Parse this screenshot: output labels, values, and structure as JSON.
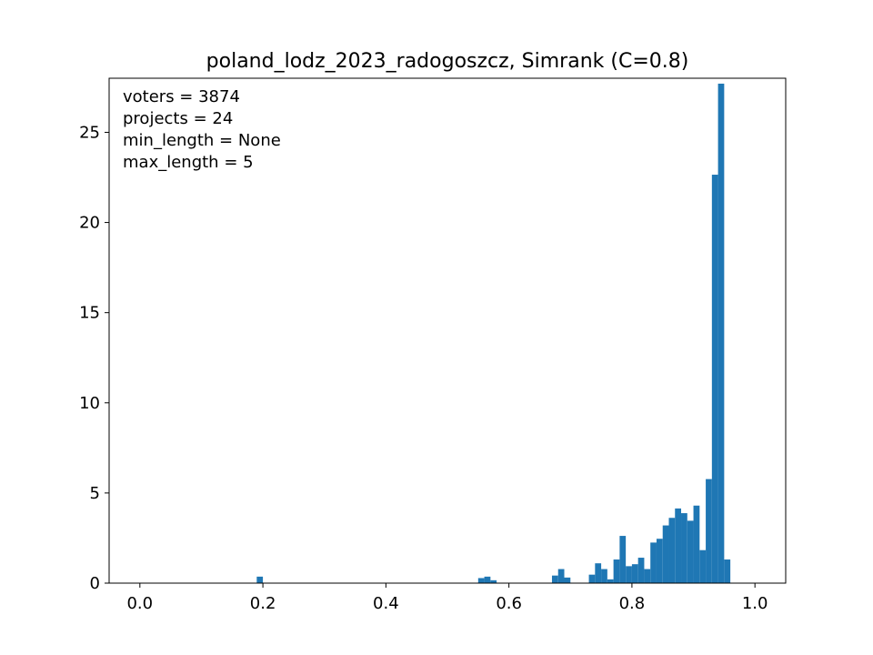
{
  "chart_data": {
    "type": "bar",
    "title": "poland_lodz_2023_radogoszcz, Simrank (C=0.8)",
    "xlabel": "",
    "ylabel": "",
    "xlim": [
      -0.05,
      1.05
    ],
    "ylim": [
      0,
      28
    ],
    "xticks": [
      0.0,
      0.2,
      0.4,
      0.6,
      0.8,
      1.0
    ],
    "xtick_labels": [
      "0.0",
      "0.2",
      "0.4",
      "0.6",
      "0.8",
      "1.0"
    ],
    "yticks": [
      0,
      5,
      10,
      15,
      20,
      25
    ],
    "ytick_labels": [
      "0",
      "5",
      "10",
      "15",
      "20",
      "25"
    ],
    "grid": false,
    "legend": false,
    "bar_color": "#1f77b4",
    "info_lines": [
      "voters = 3874",
      "projects = 24",
      "min_length = None",
      "max_length = 5"
    ],
    "bin_width": 0.01,
    "bins": [
      {
        "x0": 0.19,
        "value": 0.36
      },
      {
        "x0": 0.55,
        "value": 0.28
      },
      {
        "x0": 0.56,
        "value": 0.36
      },
      {
        "x0": 0.57,
        "value": 0.16
      },
      {
        "x0": 0.67,
        "value": 0.42
      },
      {
        "x0": 0.68,
        "value": 0.78
      },
      {
        "x0": 0.69,
        "value": 0.31
      },
      {
        "x0": 0.73,
        "value": 0.47
      },
      {
        "x0": 0.74,
        "value": 1.1
      },
      {
        "x0": 0.75,
        "value": 0.78
      },
      {
        "x0": 0.76,
        "value": 0.21
      },
      {
        "x0": 0.77,
        "value": 1.31
      },
      {
        "x0": 0.78,
        "value": 2.62
      },
      {
        "x0": 0.79,
        "value": 0.94
      },
      {
        "x0": 0.8,
        "value": 1.05
      },
      {
        "x0": 0.81,
        "value": 1.41
      },
      {
        "x0": 0.82,
        "value": 0.78
      },
      {
        "x0": 0.83,
        "value": 2.25
      },
      {
        "x0": 0.84,
        "value": 2.46
      },
      {
        "x0": 0.85,
        "value": 3.2
      },
      {
        "x0": 0.86,
        "value": 3.62
      },
      {
        "x0": 0.87,
        "value": 4.14
      },
      {
        "x0": 0.88,
        "value": 3.88
      },
      {
        "x0": 0.89,
        "value": 3.46
      },
      {
        "x0": 0.9,
        "value": 4.3
      },
      {
        "x0": 0.91,
        "value": 1.83
      },
      {
        "x0": 0.92,
        "value": 5.77
      },
      {
        "x0": 0.93,
        "value": 22.65
      },
      {
        "x0": 0.94,
        "value": 27.7
      },
      {
        "x0": 0.95,
        "value": 1.31
      }
    ]
  }
}
